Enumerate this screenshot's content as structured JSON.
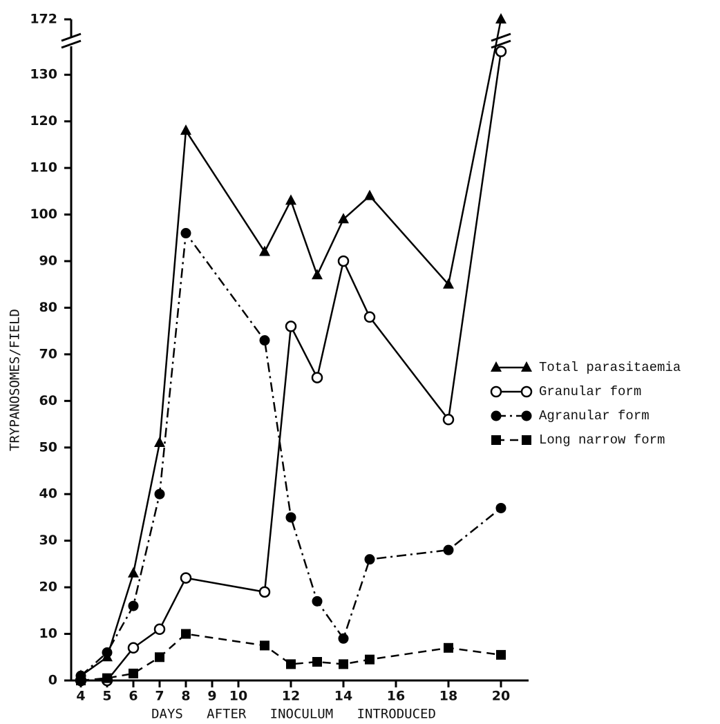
{
  "chart_data": {
    "type": "line",
    "y_label": "TRYPANOSOMES/FIELD",
    "x_label": "DAYS   AFTER   INOCULUM   INTRODUCED",
    "x": [
      4,
      5,
      6,
      7,
      8,
      11,
      12,
      13,
      14,
      15,
      18,
      20
    ],
    "xlim": [
      4,
      20
    ],
    "xticks": [
      4,
      5,
      6,
      7,
      8,
      9,
      10,
      12,
      14,
      16,
      18,
      20
    ],
    "ylim": [
      0,
      172
    ],
    "yticks": [
      0,
      10,
      20,
      30,
      40,
      50,
      60,
      70,
      80,
      90,
      100,
      110,
      120,
      130,
      172
    ],
    "y_break": [
      137,
      172
    ],
    "legend": "right",
    "series": [
      {
        "name": "Total parasitaemia",
        "color": "#000000",
        "marker": "triangle",
        "line_style": "solid",
        "values": [
          1,
          5,
          23,
          51,
          118,
          92,
          103,
          87,
          99,
          104,
          85,
          172
        ]
      },
      {
        "name": "Granular form",
        "color": "#000000",
        "marker": "open-circle",
        "line_style": "solid",
        "values": [
          0,
          0,
          7,
          11,
          22,
          19,
          76,
          65,
          90,
          78,
          56,
          135
        ]
      },
      {
        "name": "Agranular form",
        "color": "#000000",
        "marker": "filled-circle",
        "line_style": "dashdot",
        "values": [
          1,
          6,
          16,
          40,
          96,
          73,
          35,
          17,
          9,
          26,
          28,
          37
        ]
      },
      {
        "name": "Long narrow form",
        "color": "#000000",
        "marker": "square",
        "line_style": "dashed",
        "values": [
          0,
          0.5,
          1.5,
          5,
          10,
          7.5,
          3.5,
          4,
          3.5,
          4.5,
          7,
          5.5
        ]
      }
    ]
  }
}
